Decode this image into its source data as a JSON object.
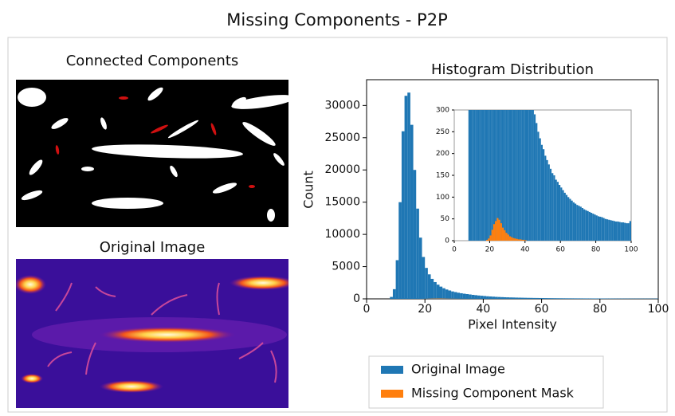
{
  "title": "Missing Components - P2P",
  "panels": [
    {
      "title": "Connected Components"
    },
    {
      "title": "Original Image"
    }
  ],
  "chart_data": [
    {
      "type": "histogram",
      "title": "Histogram Distribution",
      "xlabel": "Pixel Intensity",
      "ylabel": "Count",
      "xlim": [
        0,
        100
      ],
      "ylim": [
        0,
        34000
      ],
      "xticks": [
        0,
        20,
        40,
        60,
        80,
        100
      ],
      "yticks": [
        0,
        5000,
        10000,
        15000,
        20000,
        25000,
        30000
      ],
      "bins": [
        8,
        9,
        10,
        11,
        12,
        13,
        14,
        15,
        16,
        17,
        18,
        19,
        20,
        21,
        22,
        23,
        24,
        25,
        26,
        27,
        28,
        29,
        30,
        31,
        32,
        33,
        34,
        35,
        36,
        37,
        38,
        39,
        40,
        41,
        42,
        43,
        44,
        45,
        46,
        47,
        48,
        49,
        50,
        51,
        52,
        53,
        54,
        55,
        56,
        57,
        58,
        59,
        60,
        61,
        62,
        63,
        64,
        65,
        66,
        67,
        68,
        69,
        70,
        71,
        72,
        73,
        74,
        75,
        76,
        77,
        78,
        79,
        80,
        81,
        82,
        83,
        84,
        85,
        86,
        87,
        88,
        89,
        90,
        91,
        92,
        93,
        94,
        95,
        96,
        97,
        98,
        99,
        100
      ],
      "series": [
        {
          "name": "Original Image",
          "color": "#1f77b4",
          "values": [
            300,
            1500,
            6000,
            15000,
            26000,
            31500,
            32000,
            27000,
            20000,
            14000,
            9500,
            6500,
            4800,
            3800,
            3100,
            2600,
            2200,
            1900,
            1650,
            1450,
            1300,
            1150,
            1050,
            950,
            870,
            800,
            740,
            680,
            620,
            570,
            520,
            480,
            440,
            400,
            370,
            340,
            310,
            290,
            270,
            250,
            235,
            220,
            210,
            195,
            185,
            175,
            165,
            155,
            150,
            140,
            135,
            128,
            122,
            116,
            110,
            105,
            100,
            96,
            92,
            88,
            85,
            82,
            80,
            78,
            75,
            72,
            70,
            68,
            66,
            64,
            62,
            60,
            58,
            56,
            55,
            54,
            52,
            50,
            49,
            48,
            47,
            46,
            45,
            44,
            44,
            43,
            42,
            42,
            41,
            40,
            40,
            45
          ]
        },
        {
          "name": "Missing Component Mask",
          "color": "#ff7f0e",
          "values": [
            0,
            0,
            0,
            0,
            0,
            0,
            0,
            0,
            0,
            0,
            2,
            5,
            12,
            25,
            38,
            45,
            52,
            48,
            40,
            30,
            24,
            18,
            14,
            10,
            8,
            6,
            5,
            4,
            3,
            3,
            2,
            2,
            1,
            0,
            0,
            0,
            0,
            0,
            0,
            0,
            0,
            0,
            0,
            0,
            0,
            0,
            0,
            0,
            0,
            0,
            0,
            0,
            0,
            0,
            0,
            0,
            0,
            0,
            0,
            0,
            0,
            0,
            0,
            0,
            0,
            0,
            0,
            0,
            0,
            0,
            0,
            0,
            0,
            0,
            0,
            0,
            0,
            0,
            0,
            0,
            0,
            0,
            0,
            0,
            0,
            0,
            0,
            0,
            0,
            0,
            0,
            0
          ]
        }
      ],
      "inset": {
        "xlim": [
          0,
          100
        ],
        "ylim": [
          0,
          300
        ],
        "xticks": [
          0,
          20,
          40,
          60,
          80,
          100
        ],
        "yticks": [
          0,
          50,
          100,
          150,
          200,
          250,
          300
        ]
      }
    }
  ]
}
